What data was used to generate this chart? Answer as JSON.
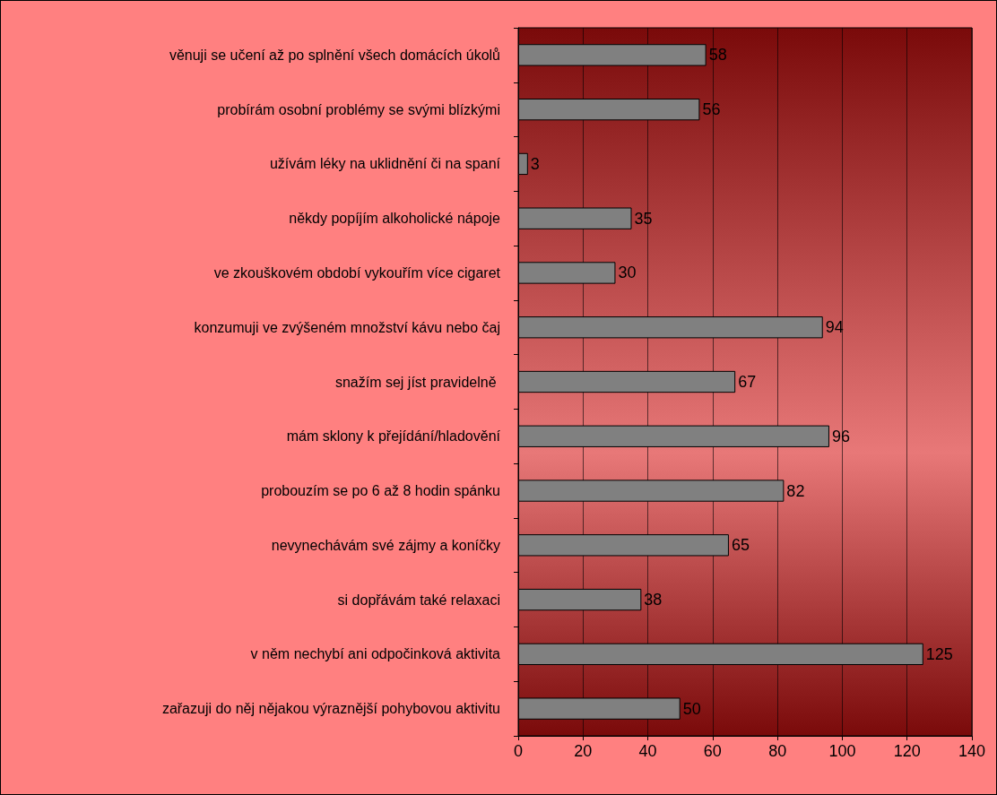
{
  "chart_data": {
    "type": "bar",
    "orientation": "horizontal",
    "categories": [
      "věnuji se učení až po splnění všech domácích úkolů",
      "probírám osobní problémy se svými blízkými",
      "užívám léky na uklidnění či na spaní",
      "někdy popíjím alkoholické nápoje",
      "ve zkouškovém období vykouřím více cigaret",
      "konzumuji ve zvýšeném množství kávu nebo čaj",
      "snažím sej jíst pravidelně ",
      "mám sklony k přejídání/hladovění",
      "probouzím se po 6 až 8 hodin spánku",
      "nevynechávám své zájmy a koníčky",
      "si dopřávám také relaxaci",
      "v něm nechybí ani odpočinková aktivita",
      "zařazuji do něj nějakou výraznější pohybovou aktivitu"
    ],
    "values": [
      58,
      56,
      3,
      35,
      30,
      94,
      67,
      96,
      82,
      65,
      38,
      125,
      50
    ],
    "color": "#808080",
    "xlim": [
      0,
      140
    ],
    "xticks": [
      0,
      20,
      40,
      60,
      80,
      100,
      120,
      140
    ],
    "grid": "x",
    "data_labels": true
  }
}
